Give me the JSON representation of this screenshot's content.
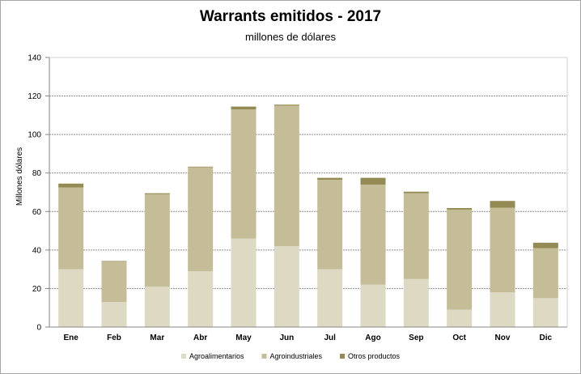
{
  "chart_data": {
    "type": "bar",
    "stacked": true,
    "title": "Warrants  emitidos  - 2017",
    "subtitle": "millones de dólares",
    "ylabel": "Millones dólares",
    "xlabel": "",
    "ylim": [
      0,
      140
    ],
    "yticks": [
      0,
      20,
      40,
      60,
      80,
      100,
      120,
      140
    ],
    "grid": true,
    "legend_position": "bottom",
    "categories": [
      "Ene",
      "Feb",
      "Mar",
      "Abr",
      "May",
      "Jun",
      "Jul",
      "Ago",
      "Sep",
      "Oct",
      "Nov",
      "Dic"
    ],
    "series": [
      {
        "name": "Agroalimentarios",
        "color": "#ddd9c3",
        "values": [
          30,
          13,
          21,
          29,
          46,
          42,
          30,
          22,
          25,
          9,
          18,
          15
        ]
      },
      {
        "name": "Agroindustriales",
        "color": "#c4bd97",
        "values": [
          42.5,
          21,
          48,
          54,
          67,
          73,
          46.5,
          52,
          44.5,
          52,
          44,
          26
        ]
      },
      {
        "name": "Otros productos",
        "color": "#948a54",
        "values": [
          2,
          0.3,
          0.5,
          0.3,
          1.5,
          0.5,
          1,
          3.5,
          0.8,
          0.8,
          3.5,
          2.8
        ]
      }
    ]
  }
}
